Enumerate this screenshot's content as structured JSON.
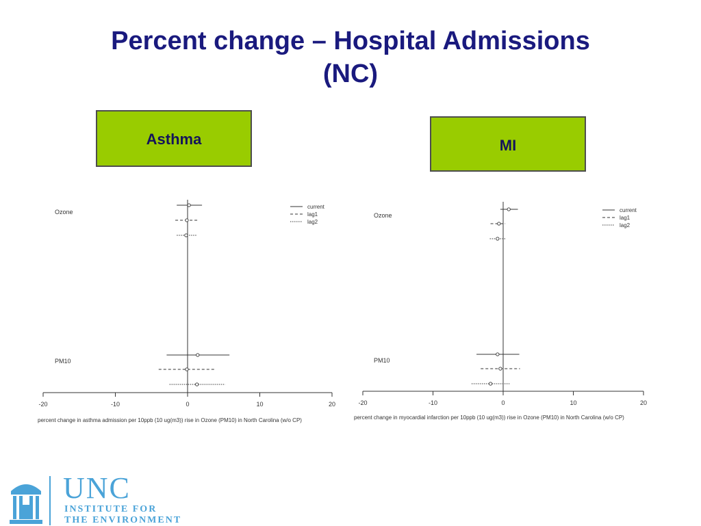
{
  "slide": {
    "title_line1": "Percent change – Hospital Admissions",
    "title_line2": "(NC)",
    "left_label": "Asthma",
    "right_label": "MI"
  },
  "logo": {
    "name": "UNC",
    "line1": "INSTITUTE FOR",
    "line2": "THE ENVIRONMENT"
  },
  "colors": {
    "title": "#1a1a7e",
    "label_box": "#99cc00",
    "logo": "#4aa3d8"
  },
  "chart_data": [
    {
      "type": "forest",
      "xlabel": "percent change in asthma admission per 10ppb (10 ug(m3)) rise in Ozone (PM10) in North Carolina (w/o CP)",
      "xlim": [
        -20,
        20
      ],
      "xticks": [
        -20,
        -10,
        0,
        10,
        20
      ],
      "groups": [
        "Ozone",
        "PM10"
      ],
      "legend": [
        "current",
        "lag1",
        "lag2"
      ],
      "legend_position": "top-right",
      "series": [
        {
          "group": "Ozone",
          "name": "current",
          "estimate": 0.2,
          "lower": -1.5,
          "upper": 2.0
        },
        {
          "group": "Ozone",
          "name": "lag1",
          "estimate": -0.1,
          "lower": -1.7,
          "upper": 1.5
        },
        {
          "group": "Ozone",
          "name": "lag2",
          "estimate": -0.2,
          "lower": -1.5,
          "upper": 1.3
        },
        {
          "group": "PM10",
          "name": "current",
          "estimate": 1.4,
          "lower": -2.9,
          "upper": 5.8
        },
        {
          "group": "PM10",
          "name": "lag1",
          "estimate": -0.1,
          "lower": -4.0,
          "upper": 3.9
        },
        {
          "group": "PM10",
          "name": "lag2",
          "estimate": 1.3,
          "lower": -2.5,
          "upper": 5.2
        }
      ]
    },
    {
      "type": "forest",
      "xlabel": "percent change in myocardial infarction per 10ppb (10 ug(m3)) rise in Ozone (PM10) in North Carolina (w/o CP)",
      "xlim": [
        -20,
        20
      ],
      "xticks": [
        -20,
        -10,
        0,
        10,
        20
      ],
      "groups": [
        "Ozone",
        "PM10"
      ],
      "legend": [
        "current",
        "lag1",
        "lag2"
      ],
      "legend_position": "top-right",
      "series": [
        {
          "group": "Ozone",
          "name": "current",
          "estimate": 0.8,
          "lower": -0.4,
          "upper": 2.1
        },
        {
          "group": "Ozone",
          "name": "lag1",
          "estimate": -0.6,
          "lower": -1.8,
          "upper": 0.3
        },
        {
          "group": "Ozone",
          "name": "lag2",
          "estimate": -0.8,
          "lower": -1.9,
          "upper": 0.4
        },
        {
          "group": "PM10",
          "name": "current",
          "estimate": -0.8,
          "lower": -3.8,
          "upper": 2.3
        },
        {
          "group": "PM10",
          "name": "lag1",
          "estimate": -0.4,
          "lower": -3.2,
          "upper": 2.4
        },
        {
          "group": "PM10",
          "name": "lag2",
          "estimate": -1.8,
          "lower": -4.5,
          "upper": 0.9
        }
      ]
    }
  ]
}
